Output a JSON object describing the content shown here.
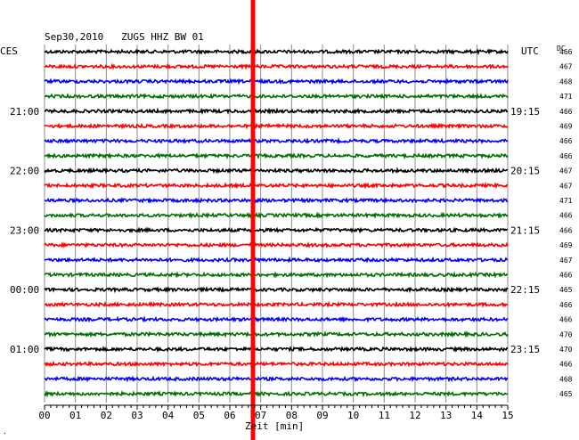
{
  "chart_data": {
    "type": "line",
    "title": "Sep30,2010   ZUGS HHZ BW 01",
    "left_label": "CES",
    "right_label": "UTC",
    "dc_label": "DC",
    "xlabel": "Zeit [min]",
    "x_ticks": [
      "00",
      "01",
      "02",
      "03",
      "04",
      "05",
      "06",
      "07",
      "08",
      "09",
      "10",
      "11",
      "12",
      "13",
      "14",
      "15"
    ],
    "xlim": [
      0,
      15
    ],
    "left_times": [
      {
        "row": 4,
        "label": "21:00"
      },
      {
        "row": 8,
        "label": "22:00"
      },
      {
        "row": 12,
        "label": "23:00"
      },
      {
        "row": 16,
        "label": "00:00"
      },
      {
        "row": 20,
        "label": "01:00"
      }
    ],
    "right_times": [
      {
        "row": 4,
        "label": "19:15"
      },
      {
        "row": 8,
        "label": "20:15"
      },
      {
        "row": 12,
        "label": "21:15"
      },
      {
        "row": 16,
        "label": "22:15"
      },
      {
        "row": 20,
        "label": "23:15"
      }
    ],
    "trace_colors": [
      "#000000",
      "#ff0000",
      "#0000ff",
      "#007000"
    ],
    "dc_values": [
      "466",
      "467",
      "468",
      "471",
      "466",
      "469",
      "466",
      "466",
      "467",
      "467",
      "471",
      "466",
      "466",
      "469",
      "467",
      "466",
      "465",
      "466",
      "466",
      "470",
      "470",
      "466",
      "468",
      "465"
    ],
    "event_marker": {
      "minute": 6.75,
      "color": "#ff0000"
    },
    "footnote": "."
  }
}
